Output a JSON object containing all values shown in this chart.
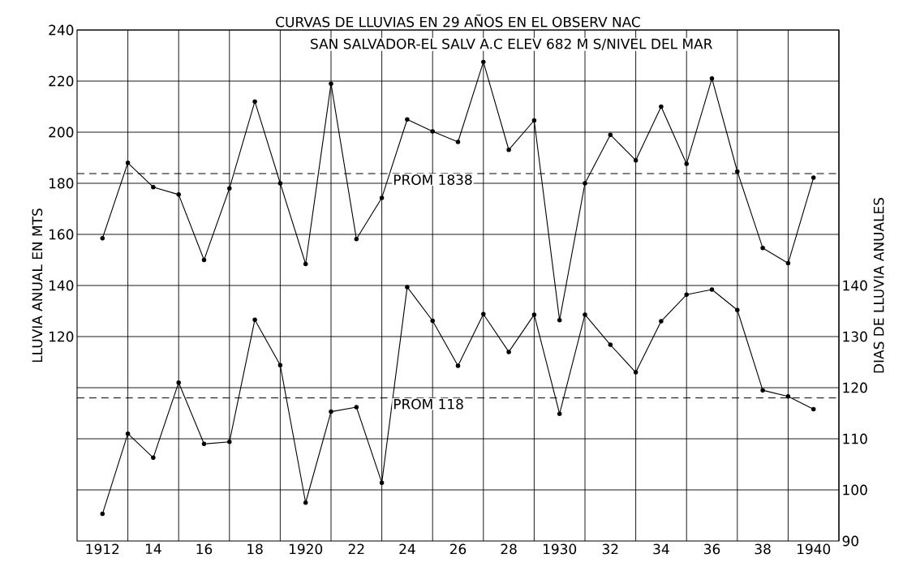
{
  "chart_data": {
    "type": "line",
    "title": "CURVAS DE LLUVIAS EN 29 AÑOS EN EL OBSERV NAC",
    "subtitle": "SAN SALVADOR-EL SALV A.C ELEV 682 M S/NIVEL DEL MAR",
    "ylabel": "LLUVIA ANUAL EN MTS",
    "y2label": "DIAS DE LLUVIA ANUALES",
    "x": [
      1912,
      1913,
      1914,
      1915,
      1916,
      1917,
      1918,
      1919,
      1920,
      1921,
      1922,
      1923,
      1924,
      1925,
      1926,
      1927,
      1928,
      1929,
      1930,
      1931,
      1932,
      1933,
      1934,
      1935,
      1936,
      1937,
      1938,
      1939,
      1940
    ],
    "series": [
      {
        "color": "#000000",
        "axis": "y",
        "values": [
          158.5,
          188,
          178.5,
          175.6,
          150,
          178,
          212,
          180,
          148.4,
          219,
          158.2,
          174.3,
          205,
          200.3,
          196.2,
          227.5,
          193.1,
          204.6,
          126.4,
          180,
          199,
          189,
          210,
          187.6,
          221,
          184.6,
          154.7,
          148.7,
          182.2
        ]
      },
      {
        "color": "#000000",
        "axis": "y2",
        "values": [
          95.3,
          111,
          106.3,
          121,
          109,
          109.4,
          133.3,
          124.4,
          97.5,
          115.3,
          116.2,
          101.4,
          139.7,
          133.1,
          124.3,
          134.4,
          127,
          134.3,
          114.9,
          134.3,
          128.4,
          123,
          133,
          138.2,
          139.2,
          135.2,
          119.5,
          118.3,
          115.8
        ]
      }
    ],
    "xlim": [
      1911,
      1941
    ],
    "xticks": [
      {
        "value": 1912,
        "label": "1912"
      },
      {
        "value": 1913,
        "label": null
      },
      {
        "value": 1914,
        "label": "14"
      },
      {
        "value": 1915,
        "label": null
      },
      {
        "value": 1916,
        "label": "16"
      },
      {
        "value": 1917,
        "label": null
      },
      {
        "value": 1918,
        "label": "18"
      },
      {
        "value": 1919,
        "label": null
      },
      {
        "value": 1920,
        "label": "1920"
      },
      {
        "value": 1921,
        "label": null
      },
      {
        "value": 1922,
        "label": "22"
      },
      {
        "value": 1923,
        "label": null
      },
      {
        "value": 1924,
        "label": "24"
      },
      {
        "value": 1925,
        "label": null
      },
      {
        "value": 1926,
        "label": "26"
      },
      {
        "value": 1927,
        "label": null
      },
      {
        "value": 1928,
        "label": "28"
      },
      {
        "value": 1929,
        "label": null
      },
      {
        "value": 1930,
        "label": "1930"
      },
      {
        "value": 1931,
        "label": null
      },
      {
        "value": 1932,
        "label": "32"
      },
      {
        "value": 1933,
        "label": null
      },
      {
        "value": 1934,
        "label": "34"
      },
      {
        "value": 1935,
        "label": null
      },
      {
        "value": 1936,
        "label": "36"
      },
      {
        "value": 1937,
        "label": null
      },
      {
        "value": 1938,
        "label": "38"
      },
      {
        "value": 1939,
        "label": null
      },
      {
        "value": 1940,
        "label": "1940"
      }
    ],
    "ylim": [
      40,
      240
    ],
    "yticks": [
      {
        "value": 60,
        "label": null
      },
      {
        "value": 80,
        "label": null
      },
      {
        "value": 100,
        "label": null
      },
      120,
      140,
      160,
      180,
      200,
      220,
      240
    ],
    "y2lim": [
      90,
      190
    ],
    "y2ticks": [
      90,
      100,
      110,
      120,
      130,
      140
    ],
    "ref_lines": [
      {
        "axis": "y",
        "value": 183.8,
        "label": "PROM 1838",
        "line_style": "dashed"
      },
      {
        "axis": "y2",
        "value": 118,
        "label": "PROM 118",
        "line_style": "dashed"
      }
    ],
    "grid": true,
    "marker": "circle",
    "line_style": "solid"
  }
}
